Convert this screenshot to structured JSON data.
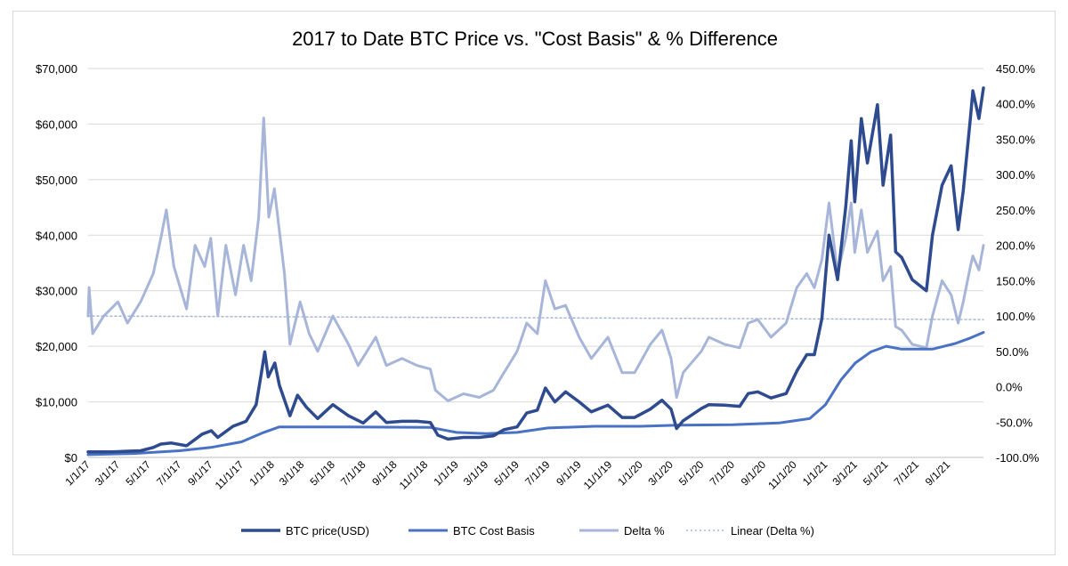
{
  "chart_data": {
    "type": "line",
    "title": "2017 to Date BTC Price vs. \"Cost Basis\" & % Difference",
    "x_axis": {
      "type": "date",
      "range": [
        "2017-01-01",
        "2021-11-10"
      ],
      "tick_labels": [
        "1/1/17",
        "3/1/17",
        "5/1/17",
        "7/1/17",
        "9/1/17",
        "11/1/17",
        "1/1/18",
        "3/1/18",
        "5/1/18",
        "7/1/18",
        "9/1/18",
        "11/1/18",
        "1/1/19",
        "3/1/19",
        "5/1/19",
        "7/1/19",
        "9/1/19",
        "11/1/19",
        "1/1/20",
        "3/1/20",
        "5/1/20",
        "7/1/20",
        "9/1/20",
        "11/1/20",
        "1/1/21",
        "3/1/21",
        "5/1/21",
        "7/1/21",
        "9/1/21"
      ],
      "tick_dates": [
        "2017-01-01",
        "2017-03-01",
        "2017-05-01",
        "2017-07-01",
        "2017-09-01",
        "2017-11-01",
        "2018-01-01",
        "2018-03-01",
        "2018-05-01",
        "2018-07-01",
        "2018-09-01",
        "2018-11-01",
        "2019-01-01",
        "2019-03-01",
        "2019-05-01",
        "2019-07-01",
        "2019-09-01",
        "2019-11-01",
        "2020-01-01",
        "2020-03-01",
        "2020-05-01",
        "2020-07-01",
        "2020-09-01",
        "2020-11-01",
        "2021-01-01",
        "2021-03-01",
        "2021-05-01",
        "2021-07-01",
        "2021-09-01"
      ]
    },
    "y_left": {
      "range": [
        0,
        70000
      ],
      "ticks": [
        0,
        10000,
        20000,
        30000,
        40000,
        50000,
        60000,
        70000
      ],
      "tick_labels": [
        "$0",
        "$10,000",
        "$20,000",
        "$30,000",
        "$40,000",
        "$50,000",
        "$60,000",
        "$70,000"
      ]
    },
    "y_right": {
      "range": [
        -100,
        450
      ],
      "ticks": [
        -100,
        -50,
        0,
        50,
        100,
        150,
        200,
        250,
        300,
        350,
        400,
        450
      ],
      "tick_labels": [
        "-100.0%",
        "-50.0%",
        "0.0%",
        "50.0%",
        "100.0%",
        "150.0%",
        "200.0%",
        "250.0%",
        "300.0%",
        "350.0%",
        "400.0%",
        "450.0%"
      ]
    },
    "grid": "horizontal",
    "legend_position": "bottom",
    "series": [
      {
        "name": "BTC price(USD)",
        "axis": "left",
        "color": "#2f4b8f",
        "style": "solid-thick",
        "points": [
          [
            "2017-01-01",
            1000
          ],
          [
            "2017-02-15",
            1000
          ],
          [
            "2017-03-15",
            1100
          ],
          [
            "2017-04-15",
            1200
          ],
          [
            "2017-05-10",
            1800
          ],
          [
            "2017-05-25",
            2400
          ],
          [
            "2017-06-15",
            2600
          ],
          [
            "2017-07-15",
            2100
          ],
          [
            "2017-08-15",
            4200
          ],
          [
            "2017-09-02",
            4800
          ],
          [
            "2017-09-15",
            3600
          ],
          [
            "2017-10-15",
            5600
          ],
          [
            "2017-11-10",
            6500
          ],
          [
            "2017-11-30",
            9500
          ],
          [
            "2017-12-10",
            15000
          ],
          [
            "2017-12-17",
            19000
          ],
          [
            "2017-12-24",
            14500
          ],
          [
            "2018-01-06",
            17000
          ],
          [
            "2018-01-15",
            13000
          ],
          [
            "2018-02-05",
            7500
          ],
          [
            "2018-02-20",
            11200
          ],
          [
            "2018-03-10",
            9000
          ],
          [
            "2018-04-01",
            7000
          ],
          [
            "2018-05-01",
            9500
          ],
          [
            "2018-06-01",
            7500
          ],
          [
            "2018-06-30",
            6200
          ],
          [
            "2018-07-25",
            8200
          ],
          [
            "2018-08-15",
            6300
          ],
          [
            "2018-09-15",
            6500
          ],
          [
            "2018-10-15",
            6500
          ],
          [
            "2018-11-10",
            6300
          ],
          [
            "2018-11-25",
            4000
          ],
          [
            "2018-12-15",
            3300
          ],
          [
            "2019-01-15",
            3600
          ],
          [
            "2019-02-15",
            3600
          ],
          [
            "2019-03-15",
            3900
          ],
          [
            "2019-04-05",
            5000
          ],
          [
            "2019-05-01",
            5500
          ],
          [
            "2019-05-20",
            8000
          ],
          [
            "2019-06-10",
            8500
          ],
          [
            "2019-06-26",
            12500
          ],
          [
            "2019-07-15",
            10000
          ],
          [
            "2019-08-05",
            11800
          ],
          [
            "2019-09-01",
            10000
          ],
          [
            "2019-09-25",
            8200
          ],
          [
            "2019-10-28",
            9400
          ],
          [
            "2019-11-25",
            7200
          ],
          [
            "2019-12-20",
            7200
          ],
          [
            "2020-01-20",
            8700
          ],
          [
            "2020-02-12",
            10300
          ],
          [
            "2020-03-01",
            8700
          ],
          [
            "2020-03-12",
            5200
          ],
          [
            "2020-03-25",
            6600
          ],
          [
            "2020-04-30",
            8800
          ],
          [
            "2020-05-15",
            9500
          ],
          [
            "2020-06-15",
            9400
          ],
          [
            "2020-07-15",
            9200
          ],
          [
            "2020-08-01",
            11500
          ],
          [
            "2020-08-20",
            11800
          ],
          [
            "2020-09-15",
            10700
          ],
          [
            "2020-10-15",
            11500
          ],
          [
            "2020-11-05",
            15500
          ],
          [
            "2020-11-25",
            18500
          ],
          [
            "2020-12-10",
            18500
          ],
          [
            "2020-12-25",
            25000
          ],
          [
            "2021-01-08",
            40000
          ],
          [
            "2021-01-25",
            32000
          ],
          [
            "2021-02-10",
            45000
          ],
          [
            "2021-02-21",
            57000
          ],
          [
            "2021-02-28",
            46000
          ],
          [
            "2021-03-13",
            61000
          ],
          [
            "2021-03-25",
            53000
          ],
          [
            "2021-04-14",
            63500
          ],
          [
            "2021-04-25",
            49000
          ],
          [
            "2021-05-10",
            58000
          ],
          [
            "2021-05-20",
            37000
          ],
          [
            "2021-06-01",
            36000
          ],
          [
            "2021-06-22",
            32000
          ],
          [
            "2021-07-20",
            30000
          ],
          [
            "2021-08-01",
            40000
          ],
          [
            "2021-08-20",
            49000
          ],
          [
            "2021-09-07",
            52500
          ],
          [
            "2021-09-21",
            41000
          ],
          [
            "2021-10-01",
            48000
          ],
          [
            "2021-10-15",
            61000
          ],
          [
            "2021-10-20",
            66000
          ],
          [
            "2021-11-01",
            61000
          ],
          [
            "2021-11-10",
            66500
          ]
        ]
      },
      {
        "name": "BTC Cost Basis",
        "axis": "left",
        "color": "#4a72c4",
        "style": "solid",
        "points": [
          [
            "2017-01-01",
            500
          ],
          [
            "2017-04-01",
            700
          ],
          [
            "2017-07-01",
            1200
          ],
          [
            "2017-09-01",
            1800
          ],
          [
            "2017-11-01",
            2800
          ],
          [
            "2017-12-15",
            4500
          ],
          [
            "2018-01-15",
            5500
          ],
          [
            "2018-06-01",
            5500
          ],
          [
            "2018-11-10",
            5400
          ],
          [
            "2019-01-01",
            4500
          ],
          [
            "2019-03-01",
            4300
          ],
          [
            "2019-05-01",
            4500
          ],
          [
            "2019-07-01",
            5300
          ],
          [
            "2019-10-01",
            5600
          ],
          [
            "2020-01-01",
            5600
          ],
          [
            "2020-03-15",
            5800
          ],
          [
            "2020-07-01",
            5900
          ],
          [
            "2020-10-01",
            6200
          ],
          [
            "2020-12-01",
            7000
          ],
          [
            "2021-01-01",
            9500
          ],
          [
            "2021-02-01",
            14000
          ],
          [
            "2021-03-01",
            17000
          ],
          [
            "2021-04-01",
            19000
          ],
          [
            "2021-05-01",
            20000
          ],
          [
            "2021-06-01",
            19500
          ],
          [
            "2021-08-01",
            19500
          ],
          [
            "2021-09-15",
            20500
          ],
          [
            "2021-10-15",
            21500
          ],
          [
            "2021-11-10",
            22500
          ]
        ]
      },
      {
        "name": "Delta %",
        "axis": "right",
        "color": "#a7b5d9",
        "style": "solid",
        "points": [
          [
            "2017-01-01",
            100
          ],
          [
            "2017-01-03",
            140
          ],
          [
            "2017-01-10",
            75
          ],
          [
            "2017-02-01",
            100
          ],
          [
            "2017-03-01",
            120
          ],
          [
            "2017-03-20",
            90
          ],
          [
            "2017-04-15",
            120
          ],
          [
            "2017-05-10",
            160
          ],
          [
            "2017-05-25",
            210
          ],
          [
            "2017-06-05",
            250
          ],
          [
            "2017-06-20",
            170
          ],
          [
            "2017-07-15",
            110
          ],
          [
            "2017-08-01",
            200
          ],
          [
            "2017-08-20",
            170
          ],
          [
            "2017-09-01",
            210
          ],
          [
            "2017-09-15",
            100
          ],
          [
            "2017-10-01",
            200
          ],
          [
            "2017-10-20",
            130
          ],
          [
            "2017-11-05",
            200
          ],
          [
            "2017-11-20",
            150
          ],
          [
            "2017-12-05",
            240
          ],
          [
            "2017-12-15",
            380
          ],
          [
            "2017-12-25",
            240
          ],
          [
            "2018-01-05",
            280
          ],
          [
            "2018-01-25",
            160
          ],
          [
            "2018-02-05",
            60
          ],
          [
            "2018-02-25",
            120
          ],
          [
            "2018-03-15",
            75
          ],
          [
            "2018-04-01",
            50
          ],
          [
            "2018-05-01",
            100
          ],
          [
            "2018-06-01",
            60
          ],
          [
            "2018-06-20",
            30
          ],
          [
            "2018-07-25",
            70
          ],
          [
            "2018-08-15",
            30
          ],
          [
            "2018-09-15",
            40
          ],
          [
            "2018-10-15",
            30
          ],
          [
            "2018-11-10",
            25
          ],
          [
            "2018-11-20",
            -5
          ],
          [
            "2018-12-15",
            -20
          ],
          [
            "2019-01-15",
            -10
          ],
          [
            "2019-02-15",
            -15
          ],
          [
            "2019-03-15",
            -5
          ],
          [
            "2019-04-05",
            20
          ],
          [
            "2019-05-01",
            50
          ],
          [
            "2019-05-20",
            90
          ],
          [
            "2019-06-10",
            75
          ],
          [
            "2019-06-26",
            150
          ],
          [
            "2019-07-15",
            110
          ],
          [
            "2019-08-05",
            115
          ],
          [
            "2019-09-01",
            70
          ],
          [
            "2019-09-25",
            40
          ],
          [
            "2019-10-28",
            70
          ],
          [
            "2019-11-25",
            20
          ],
          [
            "2019-12-20",
            20
          ],
          [
            "2020-01-20",
            60
          ],
          [
            "2020-02-12",
            80
          ],
          [
            "2020-03-01",
            40
          ],
          [
            "2020-03-12",
            -15
          ],
          [
            "2020-03-25",
            20
          ],
          [
            "2020-04-30",
            50
          ],
          [
            "2020-05-15",
            70
          ],
          [
            "2020-06-15",
            60
          ],
          [
            "2020-07-15",
            55
          ],
          [
            "2020-08-01",
            90
          ],
          [
            "2020-08-20",
            95
          ],
          [
            "2020-09-15",
            70
          ],
          [
            "2020-10-15",
            90
          ],
          [
            "2020-11-05",
            140
          ],
          [
            "2020-11-25",
            160
          ],
          [
            "2020-12-10",
            140
          ],
          [
            "2020-12-25",
            180
          ],
          [
            "2021-01-08",
            260
          ],
          [
            "2021-01-25",
            160
          ],
          [
            "2021-02-10",
            210
          ],
          [
            "2021-02-21",
            260
          ],
          [
            "2021-02-28",
            190
          ],
          [
            "2021-03-13",
            250
          ],
          [
            "2021-03-25",
            190
          ],
          [
            "2021-04-14",
            220
          ],
          [
            "2021-04-25",
            150
          ],
          [
            "2021-05-10",
            170
          ],
          [
            "2021-05-20",
            85
          ],
          [
            "2021-06-01",
            80
          ],
          [
            "2021-06-22",
            60
          ],
          [
            "2021-07-20",
            55
          ],
          [
            "2021-08-01",
            100
          ],
          [
            "2021-08-20",
            150
          ],
          [
            "2021-09-07",
            130
          ],
          [
            "2021-09-21",
            90
          ],
          [
            "2021-10-01",
            120
          ],
          [
            "2021-10-15",
            170
          ],
          [
            "2021-10-20",
            185
          ],
          [
            "2021-11-01",
            165
          ],
          [
            "2021-11-10",
            200
          ]
        ]
      },
      {
        "name": "Linear (Delta %)",
        "axis": "right",
        "color": "#a7b5d9",
        "style": "dotted",
        "points": [
          [
            "2017-01-01",
            100
          ],
          [
            "2021-11-10",
            95
          ]
        ]
      }
    ]
  }
}
